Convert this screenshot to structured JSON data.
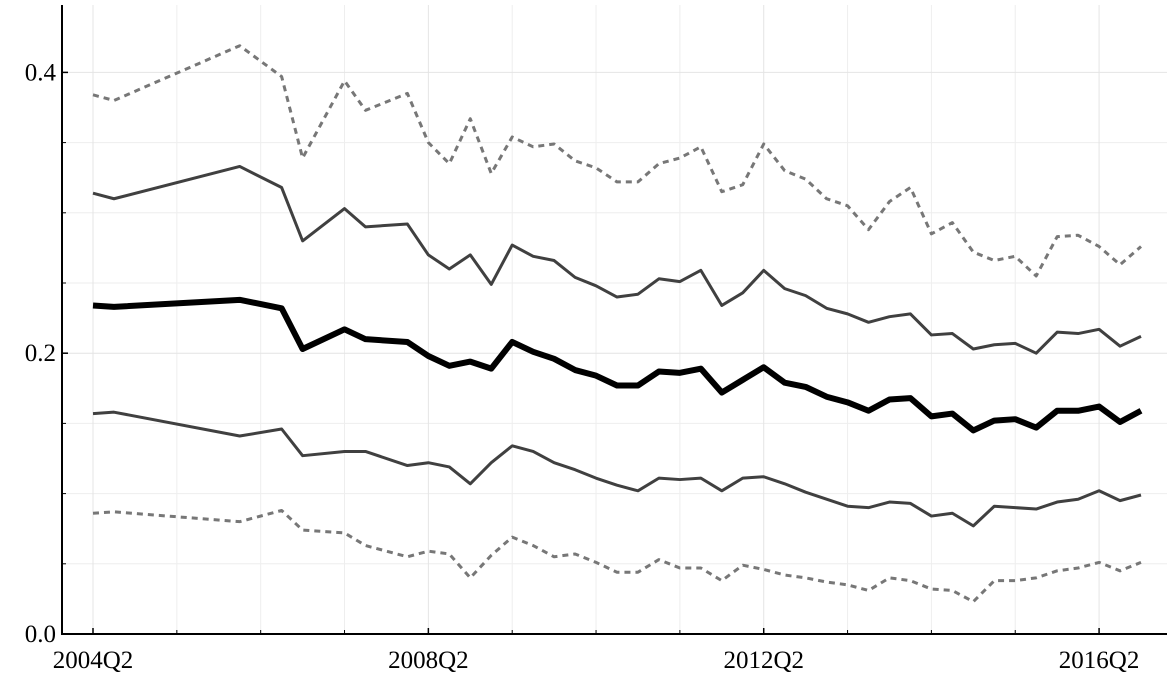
{
  "chart_data": {
    "type": "line",
    "x": [
      "2004Q2",
      "2004Q3",
      "2006Q1",
      "2006Q3",
      "2006Q4",
      "2007Q2",
      "2007Q3",
      "2008Q1",
      "2008Q2",
      "2008Q3",
      "2008Q4",
      "2009Q1",
      "2009Q2",
      "2009Q3",
      "2009Q4",
      "2010Q1",
      "2010Q2",
      "2010Q3",
      "2010Q4",
      "2011Q1",
      "2011Q2",
      "2011Q3",
      "2011Q4",
      "2012Q1",
      "2012Q2",
      "2012Q3",
      "2012Q4",
      "2013Q1",
      "2013Q2",
      "2013Q3",
      "2013Q4",
      "2014Q1",
      "2014Q2",
      "2014Q3",
      "2014Q4",
      "2015Q1",
      "2015Q2",
      "2015Q3",
      "2015Q4",
      "2016Q1",
      "2016Q2",
      "2016Q3",
      "2016Q4"
    ],
    "series": [
      {
        "color": "#777777",
        "width": 3,
        "dash": "6 5",
        "values": [
          0.384,
          0.38,
          0.419,
          0.397,
          0.339,
          0.394,
          0.373,
          0.385,
          0.35,
          0.335,
          0.367,
          0.328,
          0.354,
          0.347,
          0.349,
          0.337,
          0.332,
          0.322,
          0.322,
          0.335,
          0.339,
          0.347,
          0.315,
          0.32,
          0.349,
          0.33,
          0.324,
          0.31,
          0.305,
          0.288,
          0.308,
          0.318,
          0.285,
          0.293,
          0.272,
          0.266,
          0.269,
          0.255,
          0.283,
          0.284,
          0.276,
          0.263,
          0.276
        ]
      },
      {
        "color": "#404040",
        "width": 3,
        "dash": null,
        "values": [
          0.314,
          0.31,
          0.333,
          0.318,
          0.28,
          0.303,
          0.29,
          0.292,
          0.27,
          0.26,
          0.27,
          0.249,
          0.277,
          0.269,
          0.266,
          0.254,
          0.248,
          0.24,
          0.242,
          0.253,
          0.251,
          0.259,
          0.234,
          0.243,
          0.259,
          0.246,
          0.241,
          0.232,
          0.228,
          0.222,
          0.226,
          0.228,
          0.213,
          0.214,
          0.203,
          0.206,
          0.207,
          0.2,
          0.215,
          0.214,
          0.217,
          0.205,
          0.212
        ]
      },
      {
        "color": "#000000",
        "width": 6,
        "dash": null,
        "values": [
          0.234,
          0.233,
          0.238,
          0.232,
          0.203,
          0.217,
          0.21,
          0.208,
          0.198,
          0.191,
          0.194,
          0.189,
          0.208,
          0.201,
          0.196,
          0.188,
          0.184,
          0.177,
          0.177,
          0.187,
          0.186,
          0.189,
          0.172,
          0.181,
          0.19,
          0.179,
          0.176,
          0.169,
          0.165,
          0.159,
          0.167,
          0.168,
          0.155,
          0.157,
          0.145,
          0.152,
          0.153,
          0.147,
          0.159,
          0.159,
          0.162,
          0.151,
          0.159
        ]
      },
      {
        "color": "#404040",
        "width": 3,
        "dash": null,
        "values": [
          0.157,
          0.158,
          0.141,
          0.146,
          0.127,
          0.13,
          0.13,
          0.12,
          0.122,
          0.119,
          0.107,
          0.122,
          0.134,
          0.13,
          0.122,
          0.117,
          0.111,
          0.106,
          0.102,
          0.111,
          0.11,
          0.111,
          0.102,
          0.111,
          0.112,
          0.107,
          0.101,
          0.096,
          0.091,
          0.09,
          0.094,
          0.093,
          0.084,
          0.086,
          0.077,
          0.091,
          0.09,
          0.089,
          0.094,
          0.096,
          0.102,
          0.095,
          0.099
        ]
      },
      {
        "color": "#777777",
        "width": 3,
        "dash": "6 5",
        "values": [
          0.086,
          0.087,
          0.08,
          0.088,
          0.074,
          0.072,
          0.063,
          0.055,
          0.059,
          0.057,
          0.04,
          0.056,
          0.069,
          0.063,
          0.055,
          0.057,
          0.051,
          0.044,
          0.044,
          0.053,
          0.047,
          0.047,
          0.038,
          0.049,
          0.046,
          0.042,
          0.04,
          0.037,
          0.035,
          0.031,
          0.04,
          0.038,
          0.032,
          0.031,
          0.023,
          0.038,
          0.038,
          0.04,
          0.045,
          0.047,
          0.051,
          0.045,
          0.051
        ]
      }
    ],
    "xlim": [
      "2004Q2",
      "2016Q4"
    ],
    "xticks": [
      "2004Q2",
      "2008Q2",
      "2012Q2",
      "2016Q2"
    ],
    "xminor": [
      "2005Q2",
      "2006Q2",
      "2007Q2",
      "2009Q2",
      "2010Q2",
      "2011Q2",
      "2013Q2",
      "2014Q2",
      "2015Q2"
    ],
    "ylim": [
      0,
      0.448
    ],
    "yticks": [
      {
        "value": 0,
        "label": "0.0"
      },
      {
        "value": 0.2,
        "label": "0.2"
      },
      {
        "value": 0.4,
        "label": "0.4"
      }
    ],
    "yminor": [
      0.05,
      0.1,
      0.15,
      0.25,
      0.3,
      0.35
    ],
    "grid": true
  }
}
